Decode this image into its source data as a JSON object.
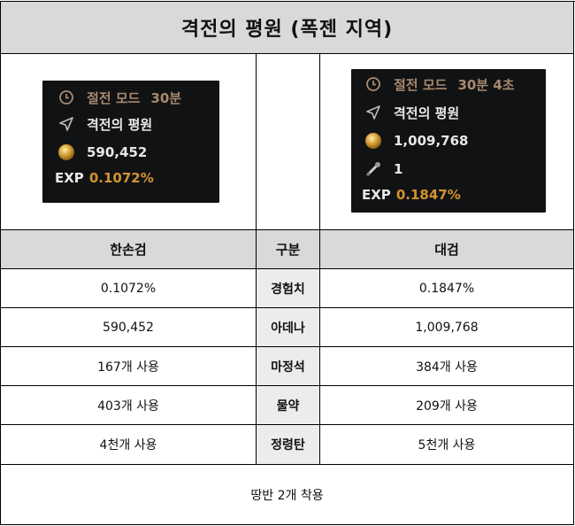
{
  "title": "격전의 평원 (폭젠 지역)",
  "panel_left": {
    "mode_label": "절전 모드",
    "mode_time": "30분",
    "location": "격전의 평원",
    "adena": "590,452",
    "exp_label": "EXP",
    "exp_value": "0.1072%"
  },
  "panel_right": {
    "mode_label": "절전 모드",
    "mode_time": "30분 4초",
    "location": "격전의 평원",
    "adena": "1,009,768",
    "item_count": "1",
    "exp_label": "EXP",
    "exp_value": "0.1847%"
  },
  "table": {
    "headers": {
      "left": "한손검",
      "middle": "구분",
      "right": "대검"
    },
    "rows": [
      {
        "left": "0.1072%",
        "label": "경험치",
        "right": "0.1847%"
      },
      {
        "left": "590,452",
        "label": "아데나",
        "right": "1,009,768"
      },
      {
        "left": "167개 사용",
        "label": "마정석",
        "right": "384개 사용"
      },
      {
        "left": "403개 사용",
        "label": "물약",
        "right": "209개 사용"
      },
      {
        "left": "4천개 사용",
        "label": "정령탄",
        "right": "5천개 사용"
      }
    ]
  },
  "footer": "땅반 2개 착용",
  "colors": {
    "header_bg": "#d9d9d9",
    "hud_bg": "#111214",
    "exp_value": "#d3942f",
    "mode_text": "#a88a6e"
  }
}
